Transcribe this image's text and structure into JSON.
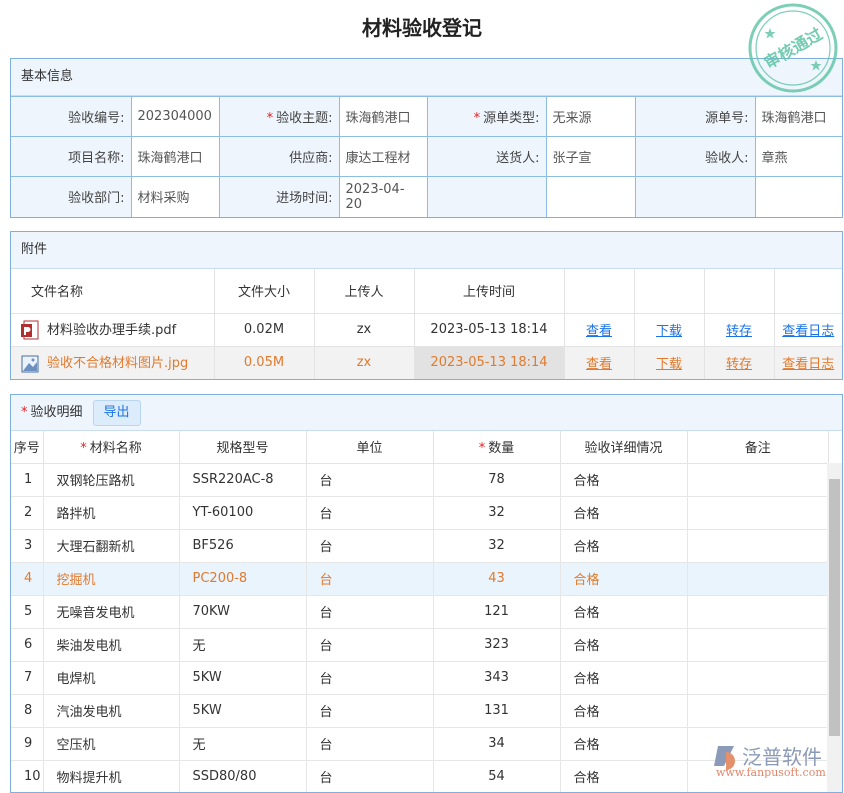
{
  "title": "材料验收登记",
  "basic": {
    "header": "基本信息",
    "rows": [
      [
        {
          "label": "验收编号:",
          "value": "202304000",
          "required": false
        },
        {
          "label": "验收主题:",
          "value": "珠海鹤港口",
          "required": true
        },
        {
          "label": "源单类型:",
          "value": "无来源",
          "required": true
        },
        {
          "label": "源单号:",
          "value": "珠海鹤港口",
          "required": false
        }
      ],
      [
        {
          "label": "项目名称:",
          "value": "珠海鹤港口",
          "required": false
        },
        {
          "label": "供应商:",
          "value": "康达工程材",
          "required": false
        },
        {
          "label": "送货人:",
          "value": "张子宣",
          "required": false
        },
        {
          "label": "验收人:",
          "value": "章燕",
          "required": false
        }
      ],
      [
        {
          "label": "验收部门:",
          "value": "材料采购",
          "required": false
        },
        {
          "label": "进场时间:",
          "value": "2023-04-20",
          "required": false
        },
        {
          "label": "",
          "value": "",
          "required": false
        },
        {
          "label": "",
          "value": "",
          "required": false
        }
      ]
    ]
  },
  "attachments": {
    "header": "附件",
    "columns": [
      "文件名称",
      "文件大小",
      "上传人",
      "上传时间"
    ],
    "actions": [
      "查看",
      "下载",
      "转存",
      "查看日志"
    ],
    "files": [
      {
        "name": "材料验收办理手续.pdf",
        "size": "0.02M",
        "uploader": "zx",
        "time": "2023-05-13 18:14",
        "icon": "pdf-icon"
      },
      {
        "name": "验收不合格材料图片.jpg",
        "size": "0.05M",
        "uploader": "zx",
        "time": "2023-05-13 18:14",
        "icon": "image-icon"
      }
    ]
  },
  "details": {
    "header": "验收明细",
    "export_label": "导出",
    "columns": [
      "序号",
      "材料名称",
      "规格型号",
      "单位",
      "数量",
      "验收详细情况",
      "备注"
    ],
    "rows": [
      [
        "1",
        "双钢轮压路机",
        "SSR220AC-8",
        "台",
        "78",
        "合格",
        ""
      ],
      [
        "2",
        "路拌机",
        "YT-60100",
        "台",
        "32",
        "合格",
        ""
      ],
      [
        "3",
        "大理石翻新机",
        "BF526",
        "台",
        "32",
        "合格",
        ""
      ],
      [
        "4",
        "挖掘机",
        "PC200-8",
        "台",
        "43",
        "合格",
        ""
      ],
      [
        "5",
        "无噪音发电机",
        "70KW",
        "台",
        "121",
        "合格",
        ""
      ],
      [
        "6",
        "柴油发电机",
        "无",
        "台",
        "323",
        "合格",
        ""
      ],
      [
        "7",
        "电焊机",
        "5KW",
        "台",
        "343",
        "合格",
        ""
      ],
      [
        "8",
        "汽油发电机",
        "5KW",
        "台",
        "131",
        "合格",
        ""
      ],
      [
        "9",
        "空压机",
        "无",
        "台",
        "34",
        "合格",
        ""
      ],
      [
        "10",
        "物料提升机",
        "SSD80/80",
        "台",
        "54",
        "合格",
        ""
      ]
    ]
  },
  "stamp": {
    "text": "审核通过",
    "color": "#5cc4a4"
  },
  "logo": {
    "name": "泛普软件",
    "url": "www.fanpusoft.com"
  },
  "colors": {
    "link": "#1a73e8",
    "highlight": "#e07a2e",
    "border": "#7fb0dc"
  }
}
